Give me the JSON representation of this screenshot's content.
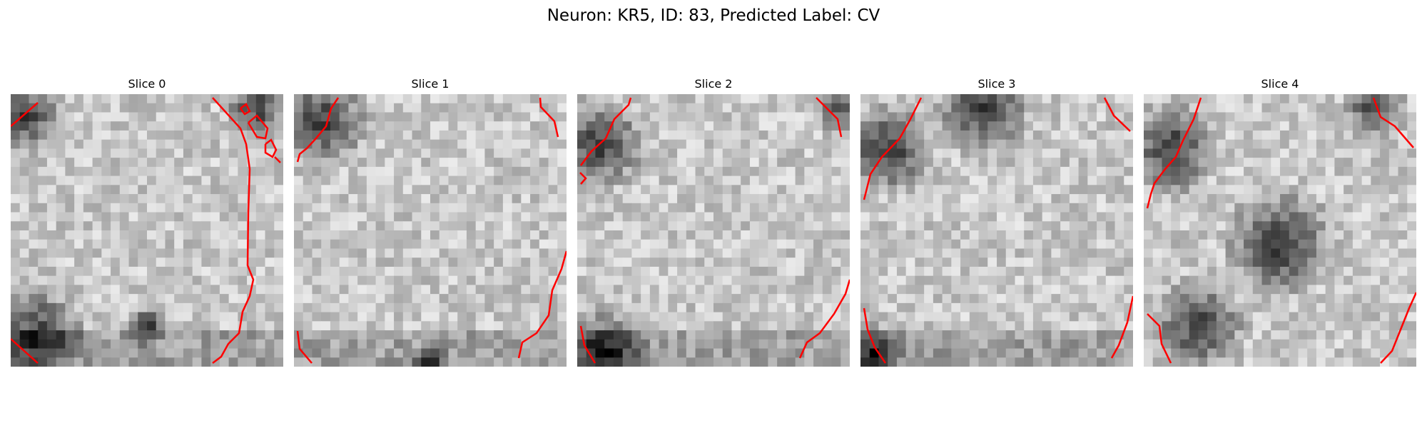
{
  "figure": {
    "title": "Neuron: KR5, ID: 83, Predicted Label: CV"
  },
  "panels": [
    {
      "title": "Slice 0",
      "contour_color": "#ff0000"
    },
    {
      "title": "Slice 1",
      "contour_color": "#ff0000"
    },
    {
      "title": "Slice 2",
      "contour_color": "#ff0000"
    },
    {
      "title": "Slice 3",
      "contour_color": "#ff0000"
    },
    {
      "title": "Slice 4",
      "contour_color": "#ff0000"
    }
  ],
  "image": {
    "colormap": "gray",
    "grid_cells": 30
  }
}
